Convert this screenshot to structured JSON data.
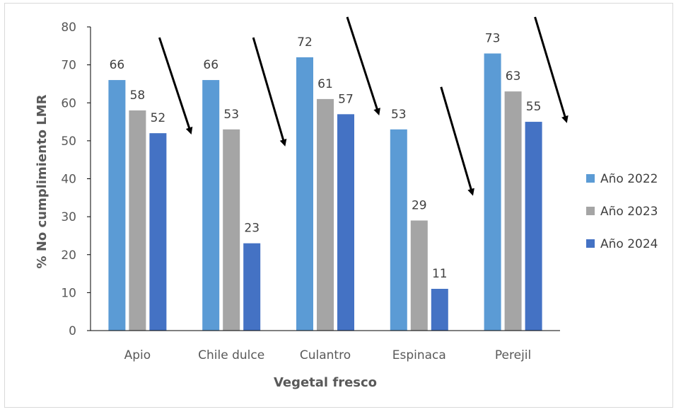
{
  "chart_data": {
    "type": "bar",
    "title": "",
    "xlabel": "Vegetal fresco",
    "ylabel": "% No cumplimiento LMR",
    "ylim": [
      0,
      80
    ],
    "yticks": [
      0,
      10,
      20,
      30,
      40,
      50,
      60,
      70,
      80
    ],
    "categories": [
      "Apio",
      "Chile dulce",
      "Culantro",
      "Espinaca",
      "Perejil"
    ],
    "series": [
      {
        "name": "Año 2022",
        "color": "#5b9bd5",
        "values": [
          66,
          66,
          72,
          53,
          73
        ]
      },
      {
        "name": "Año 2023",
        "color": "#a5a5a5",
        "values": [
          58,
          53,
          61,
          29,
          63
        ]
      },
      {
        "name": "Año 2024",
        "color": "#4472c4",
        "values": [
          52,
          23,
          57,
          11,
          55
        ]
      }
    ],
    "data_labels": true,
    "legend_position": "right",
    "grid": false,
    "annotations": "downward-arrow per category"
  }
}
